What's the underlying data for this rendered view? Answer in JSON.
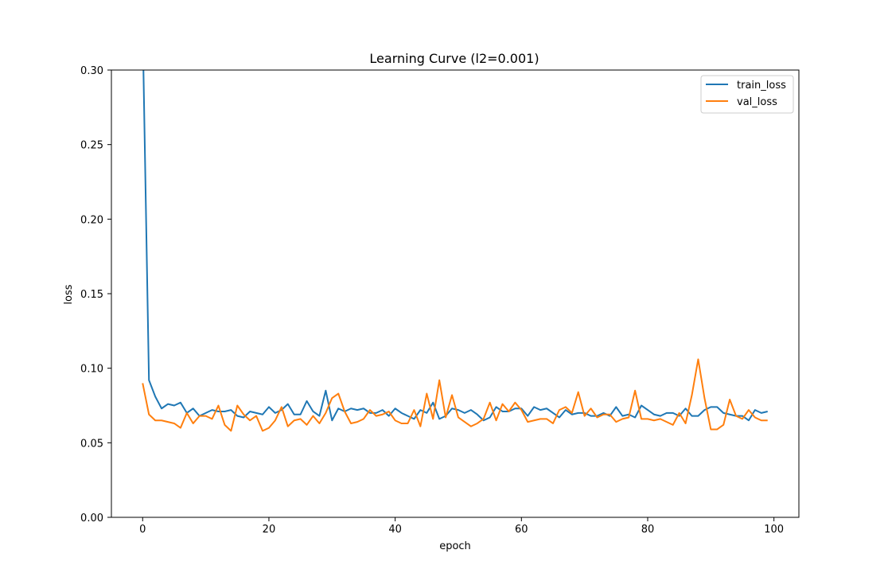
{
  "chart_data": {
    "type": "line",
    "title": "Learning Curve (l2=0.001)",
    "xlabel": "epoch",
    "ylabel": "loss",
    "xlim": [
      -4.95,
      103.95
    ],
    "ylim": [
      0.0,
      0.3
    ],
    "xticks": [
      0,
      20,
      40,
      60,
      80,
      100
    ],
    "yticks": [
      0.0,
      0.05,
      0.1,
      0.15,
      0.2,
      0.25,
      0.3
    ],
    "xtick_labels": [
      "0",
      "20",
      "40",
      "60",
      "80",
      "100"
    ],
    "ytick_labels": [
      "0.00",
      "0.05",
      "0.10",
      "0.15",
      "0.20",
      "0.25",
      "0.30"
    ],
    "grid": false,
    "legend_position": "top-right",
    "series": [
      {
        "name": "train_loss",
        "color": "#1f77b4",
        "values": [
          0.33,
          0.092,
          0.081,
          0.073,
          0.076,
          0.075,
          0.077,
          0.07,
          0.073,
          0.068,
          0.07,
          0.072,
          0.071,
          0.071,
          0.072,
          0.068,
          0.067,
          0.071,
          0.07,
          0.069,
          0.074,
          0.07,
          0.072,
          0.076,
          0.069,
          0.069,
          0.078,
          0.071,
          0.068,
          0.085,
          0.065,
          0.073,
          0.071,
          0.073,
          0.072,
          0.073,
          0.07,
          0.07,
          0.072,
          0.068,
          0.073,
          0.07,
          0.068,
          0.066,
          0.072,
          0.07,
          0.077,
          0.066,
          0.068,
          0.073,
          0.072,
          0.07,
          0.072,
          0.069,
          0.065,
          0.067,
          0.074,
          0.071,
          0.071,
          0.073,
          0.073,
          0.068,
          0.074,
          0.072,
          0.073,
          0.07,
          0.067,
          0.072,
          0.069,
          0.07,
          0.07,
          0.068,
          0.068,
          0.07,
          0.068,
          0.074,
          0.068,
          0.069,
          0.067,
          0.075,
          0.072,
          0.069,
          0.068,
          0.07,
          0.07,
          0.068,
          0.073,
          0.068,
          0.068,
          0.072,
          0.074,
          0.074,
          0.07,
          0.069,
          0.068,
          0.068,
          0.065,
          0.072,
          0.07,
          0.071
        ]
      },
      {
        "name": "val_loss",
        "color": "#ff7f0e",
        "values": [
          0.09,
          0.069,
          0.065,
          0.065,
          0.064,
          0.063,
          0.06,
          0.07,
          0.063,
          0.068,
          0.068,
          0.066,
          0.075,
          0.062,
          0.058,
          0.075,
          0.069,
          0.065,
          0.068,
          0.058,
          0.06,
          0.065,
          0.074,
          0.061,
          0.065,
          0.066,
          0.062,
          0.068,
          0.063,
          0.07,
          0.08,
          0.083,
          0.071,
          0.063,
          0.064,
          0.066,
          0.072,
          0.068,
          0.069,
          0.071,
          0.065,
          0.063,
          0.063,
          0.072,
          0.061,
          0.083,
          0.066,
          0.092,
          0.067,
          0.082,
          0.067,
          0.064,
          0.061,
          0.063,
          0.066,
          0.077,
          0.065,
          0.076,
          0.071,
          0.077,
          0.072,
          0.064,
          0.065,
          0.066,
          0.066,
          0.063,
          0.072,
          0.074,
          0.07,
          0.084,
          0.068,
          0.073,
          0.067,
          0.069,
          0.069,
          0.064,
          0.066,
          0.067,
          0.085,
          0.066,
          0.066,
          0.065,
          0.066,
          0.064,
          0.062,
          0.07,
          0.063,
          0.082,
          0.106,
          0.08,
          0.059,
          0.059,
          0.062,
          0.079,
          0.068,
          0.066,
          0.072,
          0.067,
          0.065,
          0.065
        ]
      }
    ]
  }
}
